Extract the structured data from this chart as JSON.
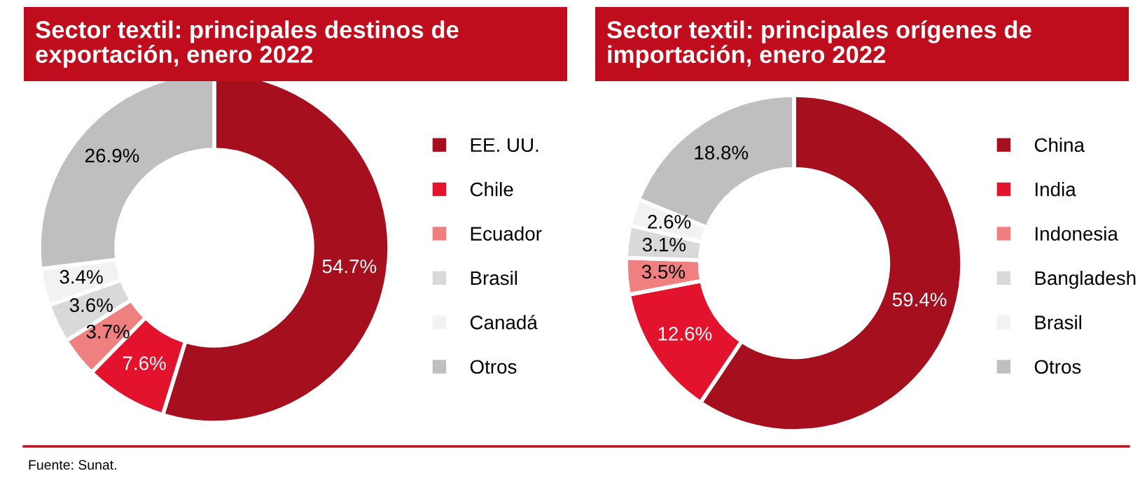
{
  "chart_data": [
    {
      "type": "donut",
      "title": "Sector textil: principales destinos de exportación, enero 2022",
      "categories": [
        "EE. UU.",
        "Chile",
        "Ecuador",
        "Brasil",
        "Canadá",
        "Otros"
      ],
      "values": [
        54.7,
        7.6,
        3.7,
        3.6,
        3.4,
        26.9
      ],
      "colors": [
        "#a50f1e",
        "#e3122d",
        "#f08080",
        "#d9d9d9",
        "#f2f2f2",
        "#bfbfbf"
      ],
      "value_labels": [
        "54.7%",
        "7.6%",
        "3.7%",
        "3.6%",
        "3.4%",
        "26.9%"
      ],
      "legend": "right",
      "annotations": [
        "Fuente: Sunat."
      ]
    },
    {
      "type": "donut",
      "title": "Sector textil: principales orígenes de importación, enero 2022",
      "categories": [
        "China",
        "India",
        "Indonesia",
        "Bangladesh",
        "Brasil",
        "Otros"
      ],
      "values": [
        59.4,
        12.6,
        3.5,
        3.1,
        2.6,
        18.8
      ],
      "colors": [
        "#a50f1e",
        "#e3122d",
        "#f08080",
        "#d9d9d9",
        "#f2f2f2",
        "#bfbfbf"
      ],
      "value_labels": [
        "59.4%",
        "12.6%",
        "3.5%",
        "3.1%",
        "2.6%",
        "18.8%"
      ],
      "legend": "right"
    }
  ]
}
